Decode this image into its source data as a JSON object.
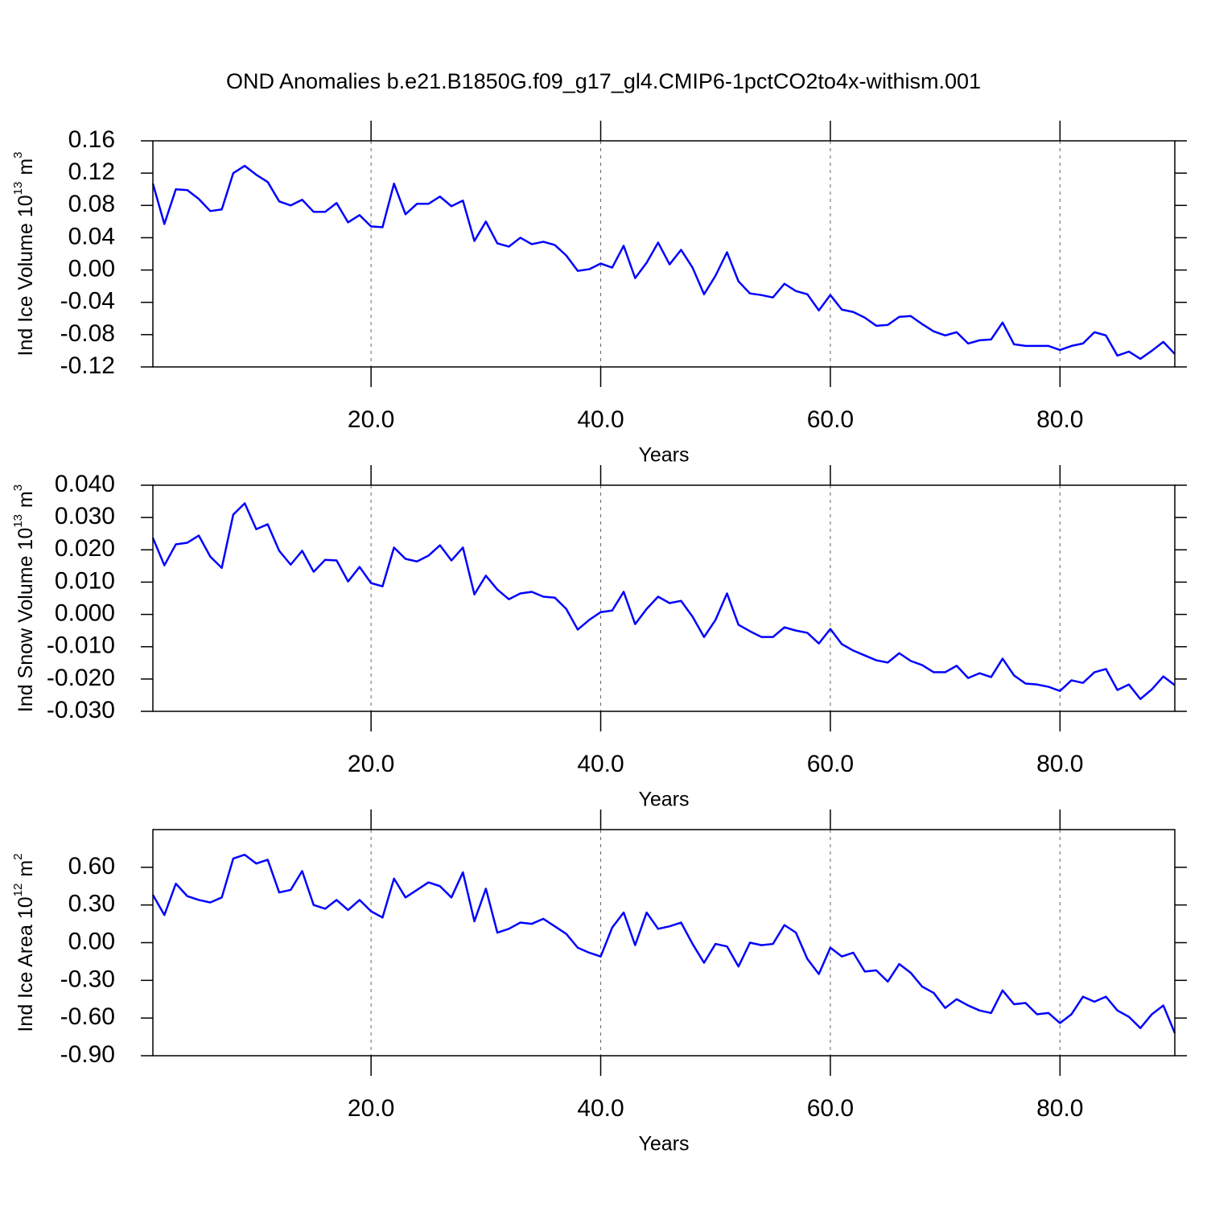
{
  "title": "OND Anomalies b.e21.B1850G.f09_g17_gl4.CMIP6-1pctCO2to4x-withism.001",
  "chart_data": [
    {
      "type": "line",
      "color": "#0000ff",
      "xgrid": true,
      "ylabel": {
        "text": "Ind Ice Volume 10",
        "exponent": "13",
        "unit": "m",
        "unit_exponent": "3"
      },
      "xlabel": "Years",
      "xlim": [
        1,
        90
      ],
      "xticks": [
        {
          "value": 20,
          "label": "20.0"
        },
        {
          "value": 40,
          "label": "40.0"
        },
        {
          "value": 60,
          "label": "60.0"
        },
        {
          "value": 80,
          "label": "80.0"
        }
      ],
      "ylim": [
        -0.12,
        0.16
      ],
      "yticks": [
        -0.12,
        -0.08,
        -0.04,
        {
          "value": 0,
          "label": "0.00"
        },
        0.04,
        0.08,
        0.12,
        0.16
      ],
      "x": [
        1,
        2,
        3,
        4,
        5,
        6,
        7,
        8,
        9,
        10,
        11,
        12,
        13,
        14,
        15,
        16,
        17,
        18,
        19,
        20,
        21,
        22,
        23,
        24,
        25,
        26,
        27,
        28,
        29,
        30,
        31,
        32,
        33,
        34,
        35,
        36,
        37,
        38,
        39,
        40,
        41,
        42,
        43,
        44,
        45,
        46,
        47,
        48,
        49,
        50,
        51,
        52,
        53,
        54,
        55,
        56,
        57,
        58,
        59,
        60,
        61,
        62,
        63,
        64,
        65,
        66,
        67,
        68,
        69,
        70,
        71,
        72,
        73,
        74,
        75,
        76,
        77,
        78,
        79,
        80,
        81,
        82,
        83,
        84,
        85,
        86,
        87,
        88,
        89,
        90
      ],
      "values": [
        0.107,
        0.057,
        0.1,
        0.099,
        0.088,
        0.073,
        0.075,
        0.12,
        0.129,
        0.118,
        0.109,
        0.085,
        0.08,
        0.087,
        0.072,
        0.072,
        0.083,
        0.059,
        0.068,
        0.054,
        0.053,
        0.107,
        0.069,
        0.082,
        0.082,
        0.091,
        0.079,
        0.086,
        0.036,
        0.06,
        0.033,
        0.029,
        0.04,
        0.032,
        0.035,
        0.031,
        0.018,
        -0.001,
        0.001,
        0.008,
        0.003,
        0.03,
        -0.01,
        0.009,
        0.034,
        0.007,
        0.025,
        0.003,
        -0.03,
        -0.007,
        0.022,
        -0.014,
        -0.029,
        -0.031,
        -0.034,
        -0.017,
        -0.026,
        -0.03,
        -0.05,
        -0.031,
        -0.049,
        -0.052,
        -0.059,
        -0.069,
        -0.068,
        -0.058,
        -0.057,
        -0.067,
        -0.076,
        -0.081,
        -0.077,
        -0.091,
        -0.087,
        -0.086,
        -0.065,
        -0.092,
        -0.094,
        -0.094,
        -0.094,
        -0.099,
        -0.094,
        -0.091,
        -0.077,
        -0.081,
        -0.106,
        -0.101,
        -0.11,
        -0.1,
        -0.089,
        -0.104
      ]
    },
    {
      "type": "line",
      "color": "#0000ff",
      "xgrid": true,
      "ylabel": {
        "text": "Ind Snow Volume 10",
        "exponent": "13",
        "unit": "m",
        "unit_exponent": "3"
      },
      "xlabel": "Years",
      "xlim": [
        1,
        90
      ],
      "xticks": [
        {
          "value": 20,
          "label": "20.0"
        },
        {
          "value": 40,
          "label": "40.0"
        },
        {
          "value": 60,
          "label": "60.0"
        },
        {
          "value": 80,
          "label": "80.0"
        }
      ],
      "ylim": [
        -0.03,
        0.04
      ],
      "yticks": [
        {
          "value": -0.03,
          "label": "-0.030"
        },
        {
          "value": -0.02,
          "label": "-0.020"
        },
        {
          "value": -0.01,
          "label": "-0.010"
        },
        {
          "value": 0,
          "label": "0.000"
        },
        {
          "value": 0.01,
          "label": "0.010"
        },
        {
          "value": 0.02,
          "label": "0.020"
        },
        {
          "value": 0.03,
          "label": "0.030"
        },
        {
          "value": 0.04,
          "label": "0.040"
        }
      ],
      "x": [
        1,
        2,
        3,
        4,
        5,
        6,
        7,
        8,
        9,
        10,
        11,
        12,
        13,
        14,
        15,
        16,
        17,
        18,
        19,
        20,
        21,
        22,
        23,
        24,
        25,
        26,
        27,
        28,
        29,
        30,
        31,
        32,
        33,
        34,
        35,
        36,
        37,
        38,
        39,
        40,
        41,
        42,
        43,
        44,
        45,
        46,
        47,
        48,
        49,
        50,
        51,
        52,
        53,
        54,
        55,
        56,
        57,
        58,
        59,
        60,
        61,
        62,
        63,
        64,
        65,
        66,
        67,
        68,
        69,
        70,
        71,
        72,
        73,
        74,
        75,
        76,
        77,
        78,
        79,
        80,
        81,
        82,
        83,
        84,
        85,
        86,
        87,
        88,
        89,
        90
      ],
      "values": [
        0.0237,
        0.0152,
        0.0217,
        0.0222,
        0.0244,
        0.0179,
        0.0144,
        0.0309,
        0.0344,
        0.0264,
        0.0279,
        0.0197,
        0.0154,
        0.0197,
        0.0132,
        0.0169,
        0.0167,
        0.0102,
        0.0147,
        0.0097,
        0.0087,
        0.0207,
        0.0172,
        0.0164,
        0.0182,
        0.0214,
        0.0167,
        0.0207,
        0.0062,
        0.012,
        0.0077,
        0.0047,
        0.0065,
        0.007,
        0.0055,
        0.0052,
        0.0017,
        -0.0047,
        -0.0017,
        0.0007,
        0.0012,
        0.007,
        -0.003,
        0.0017,
        0.0055,
        0.0035,
        0.0042,
        -0.0007,
        -0.007,
        -0.0017,
        0.0065,
        -0.0032,
        -0.0052,
        -0.007,
        -0.007,
        -0.004,
        -0.005,
        -0.0057,
        -0.009,
        -0.0045,
        -0.0092,
        -0.0112,
        -0.0127,
        -0.0142,
        -0.0149,
        -0.012,
        -0.0144,
        -0.0157,
        -0.0179,
        -0.0179,
        -0.0159,
        -0.0197,
        -0.0182,
        -0.0194,
        -0.0137,
        -0.0189,
        -0.0214,
        -0.0217,
        -0.0224,
        -0.0237,
        -0.0204,
        -0.0212,
        -0.0179,
        -0.0169,
        -0.0234,
        -0.0217,
        -0.0262,
        -0.0232,
        -0.0192,
        -0.0219
      ]
    },
    {
      "type": "line",
      "color": "#0000ff",
      "xgrid": true,
      "ylabel": {
        "text": "Ind Ice Area 10",
        "exponent": "12",
        "unit": "m",
        "unit_exponent": "2"
      },
      "xlabel": "Years",
      "xlim": [
        1,
        90
      ],
      "xticks": [
        {
          "value": 20,
          "label": "20.0"
        },
        {
          "value": 40,
          "label": "40.0"
        },
        {
          "value": 60,
          "label": "60.0"
        },
        {
          "value": 80,
          "label": "80.0"
        }
      ],
      "ylim": [
        -0.9,
        0.9
      ],
      "yticks": [
        {
          "value": -0.9,
          "label": "-0.90"
        },
        {
          "value": -0.6,
          "label": "-0.60"
        },
        {
          "value": -0.3,
          "label": "-0.30"
        },
        {
          "value": 0,
          "label": "0.00"
        },
        {
          "value": 0.3,
          "label": "0.30"
        },
        {
          "value": 0.6,
          "label": "0.60"
        }
      ],
      "x": [
        1,
        2,
        3,
        4,
        5,
        6,
        7,
        8,
        9,
        10,
        11,
        12,
        13,
        14,
        15,
        16,
        17,
        18,
        19,
        20,
        21,
        22,
        23,
        24,
        25,
        26,
        27,
        28,
        29,
        30,
        31,
        32,
        33,
        34,
        35,
        36,
        37,
        38,
        39,
        40,
        41,
        42,
        43,
        44,
        45,
        46,
        47,
        48,
        49,
        50,
        51,
        52,
        53,
        54,
        55,
        56,
        57,
        58,
        59,
        60,
        61,
        62,
        63,
        64,
        65,
        66,
        67,
        68,
        69,
        70,
        71,
        72,
        73,
        74,
        75,
        76,
        77,
        78,
        79,
        80,
        81,
        82,
        83,
        84,
        85,
        86,
        87,
        88,
        89,
        90
      ],
      "values": [
        0.38,
        0.22,
        0.47,
        0.37,
        0.34,
        0.32,
        0.36,
        0.67,
        0.7,
        0.63,
        0.66,
        0.4,
        0.42,
        0.57,
        0.3,
        0.27,
        0.34,
        0.26,
        0.34,
        0.25,
        0.2,
        0.51,
        0.36,
        0.42,
        0.48,
        0.45,
        0.36,
        0.56,
        0.17,
        0.43,
        0.08,
        0.11,
        0.16,
        0.15,
        0.19,
        0.13,
        0.07,
        -0.04,
        -0.08,
        -0.11,
        0.12,
        0.24,
        -0.02,
        0.24,
        0.11,
        0.13,
        0.16,
        -0.01,
        -0.16,
        -0.01,
        -0.03,
        -0.19,
        0.0,
        -0.02,
        -0.01,
        0.14,
        0.08,
        -0.13,
        -0.25,
        -0.04,
        -0.11,
        -0.08,
        -0.23,
        -0.22,
        -0.31,
        -0.17,
        -0.24,
        -0.35,
        -0.4,
        -0.52,
        -0.45,
        -0.5,
        -0.54,
        -0.56,
        -0.38,
        -0.49,
        -0.48,
        -0.57,
        -0.56,
        -0.64,
        -0.57,
        -0.43,
        -0.47,
        -0.43,
        -0.54,
        -0.59,
        -0.68,
        -0.57,
        -0.5,
        -0.72
      ]
    }
  ]
}
